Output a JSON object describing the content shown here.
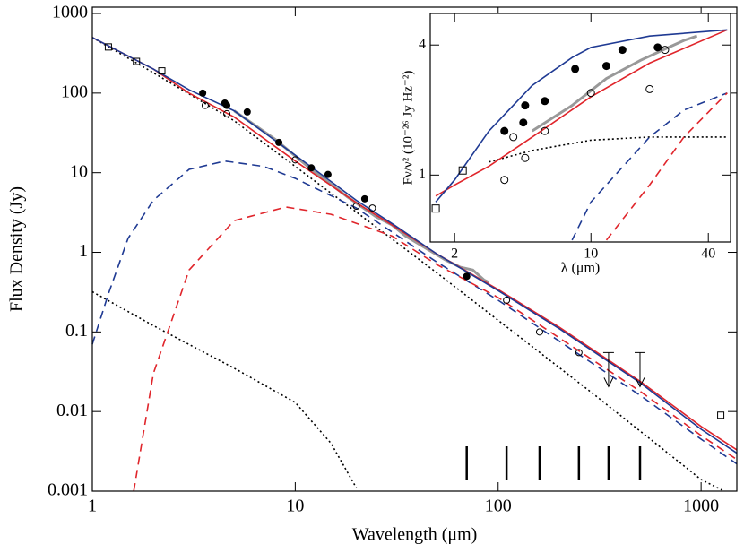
{
  "chart_data": [
    {
      "type": "line",
      "xlabel": "Wavelength (μm)",
      "ylabel": "Flux Density (Jy)",
      "log_x": true,
      "log_y": true,
      "xlim": [
        1,
        1500
      ],
      "ylim": [
        0.001,
        1200
      ],
      "xticks": [
        1,
        10,
        100,
        1000
      ],
      "yticks": [
        0.001,
        0.01,
        0.1,
        1,
        10,
        100,
        1000
      ],
      "band_wavelengths": [
        70,
        110,
        160,
        250,
        350,
        500
      ],
      "band_color": "#000000",
      "series": [
        {
          "color": "#000000",
          "dash": "dotted",
          "x": [
            1,
            2,
            5,
            10,
            20,
            50,
            100,
            300,
            1000,
            1300
          ],
          "values": [
            500,
            180,
            45,
            12,
            3.2,
            0.55,
            0.14,
            0.016,
            0.0014,
            0.001
          ]
        },
        {
          "color": "#000000",
          "dash": "dotted",
          "x": [
            1,
            2,
            5,
            10,
            15,
            20
          ],
          "values": [
            0.32,
            0.12,
            0.035,
            0.013,
            0.004,
            0.0011
          ]
        },
        {
          "color": "#1f3a93",
          "dash": "dashed",
          "x": [
            1,
            1.2,
            1.5,
            2,
            3,
            4.5,
            7,
            10,
            20,
            50,
            100,
            500,
            1000,
            1500
          ],
          "values": [
            0.07,
            0.3,
            1.5,
            4.5,
            11,
            14,
            12,
            8.5,
            3.6,
            0.75,
            0.25,
            0.016,
            0.0045,
            0.0022
          ]
        },
        {
          "color": "#e0252b",
          "dash": "dashed",
          "x": [
            1.6,
            2,
            3,
            5,
            9,
            15,
            30,
            50,
            100,
            500,
            1000,
            1500
          ],
          "values": [
            0.001,
            0.03,
            0.6,
            2.5,
            3.7,
            3,
            1.6,
            0.7,
            0.27,
            0.018,
            0.005,
            0.0025
          ]
        },
        {
          "color": "#999999",
          "dash": "solid",
          "x": [
            5,
            8,
            12,
            18,
            25,
            30,
            35,
            55,
            65,
            75,
            85,
            90
          ],
          "values": [
            60,
            26,
            11,
            5,
            2.8,
            2.2,
            1.6,
            0.8,
            0.65,
            0.6,
            0.45,
            0.42
          ]
        },
        {
          "color": "#e0252b",
          "dash": "solid",
          "x": [
            1,
            2,
            3,
            5,
            10,
            20,
            30,
            50,
            100,
            200,
            500,
            1000,
            1500
          ],
          "values": [
            500,
            200,
            100,
            50,
            14,
            4.2,
            2.2,
            0.95,
            0.34,
            0.115,
            0.024,
            0.0065,
            0.0033
          ]
        },
        {
          "color": "#1f3a93",
          "dash": "solid",
          "x": [
            1,
            2,
            3,
            5,
            10,
            20,
            30,
            50,
            100,
            200,
            500,
            1000,
            1500
          ],
          "values": [
            500,
            200,
            110,
            60,
            16.6,
            4.5,
            2.3,
            0.95,
            0.33,
            0.11,
            0.023,
            0.006,
            0.003
          ]
        },
        {
          "color": "#000000",
          "marker": "open-square",
          "x": [
            1.2,
            1.65,
            2.2,
            1250
          ],
          "values": [
            380,
            250,
            190,
            0.009
          ]
        },
        {
          "color": "#000000",
          "marker": "open-circle",
          "x": [
            3.6,
            4.6,
            10,
            20,
            24,
            70,
            110,
            160,
            250
          ],
          "values": [
            70,
            55,
            14.5,
            3.8,
            3.6,
            0.5,
            0.25,
            0.1,
            0.055
          ]
        },
        {
          "color": "#000000",
          "marker": "filled-circle",
          "x": [
            3.5,
            4.5,
            4.6,
            5.8,
            8.3,
            12,
            14.5,
            22,
            70
          ],
          "values": [
            100,
            75,
            70,
            58,
            24,
            11.5,
            9.5,
            4.7,
            0.5
          ]
        },
        {
          "color": "#000000",
          "marker": "upper-limit",
          "x": [
            350,
            500
          ],
          "values": [
            0.055,
            0.055
          ]
        }
      ]
    },
    {
      "type": "line",
      "xlabel": "λ (μm)",
      "ylabel": "Fν/ν² (10⁻²⁶ Jy Hz⁻²)",
      "log_x": true,
      "log_y": true,
      "xlim": [
        1.5,
        52
      ],
      "ylim": [
        0.49,
        5.6
      ],
      "xticks": [
        2,
        10,
        40
      ],
      "yticks": [
        1,
        4
      ],
      "series": [
        {
          "color": "#000000",
          "dash": "dotted",
          "x": [
            3,
            5,
            10,
            20,
            50
          ],
          "values": [
            1.15,
            1.3,
            1.45,
            1.5,
            1.5
          ]
        },
        {
          "color": "#1f3a93",
          "dash": "dashed",
          "x": [
            8,
            10,
            20,
            30,
            50
          ],
          "values": [
            0.5,
            0.75,
            1.5,
            2.0,
            2.4
          ]
        },
        {
          "color": "#e0252b",
          "dash": "dashed",
          "x": [
            12,
            20,
            30,
            50
          ],
          "values": [
            0.5,
            0.9,
            1.5,
            2.4
          ]
        },
        {
          "color": "#999999",
          "dash": "solid",
          "x": [
            5,
            8,
            12,
            18,
            25,
            30,
            35
          ],
          "values": [
            1.6,
            2.1,
            2.8,
            3.4,
            3.9,
            4.2,
            4.4
          ]
        },
        {
          "color": "#e0252b",
          "dash": "solid",
          "x": [
            1.6,
            2,
            3,
            5,
            10,
            20,
            50
          ],
          "values": [
            0.8,
            0.9,
            1.1,
            1.5,
            2.3,
            3.3,
            4.7
          ]
        },
        {
          "color": "#1f3a93",
          "dash": "solid",
          "x": [
            1.6,
            2,
            3,
            5,
            8,
            10,
            20,
            50
          ],
          "values": [
            0.75,
            0.95,
            1.6,
            2.6,
            3.5,
            3.9,
            4.4,
            4.7
          ]
        },
        {
          "color": "#000000",
          "marker": "open-square",
          "x": [
            1.6,
            2.2
          ],
          "values": [
            0.7,
            1.05
          ]
        },
        {
          "color": "#000000",
          "marker": "open-circle",
          "x": [
            3.6,
            4,
            4.6,
            5.8,
            10,
            20,
            24
          ],
          "values": [
            0.95,
            1.5,
            1.2,
            1.6,
            2.4,
            2.5,
            3.8
          ]
        },
        {
          "color": "#000000",
          "marker": "filled-circle",
          "x": [
            3.6,
            4.5,
            4.6,
            5.8,
            8.3,
            12,
            14.5,
            22
          ],
          "values": [
            1.6,
            1.75,
            2.1,
            2.2,
            3.1,
            3.2,
            3.8,
            3.9
          ]
        }
      ]
    }
  ]
}
